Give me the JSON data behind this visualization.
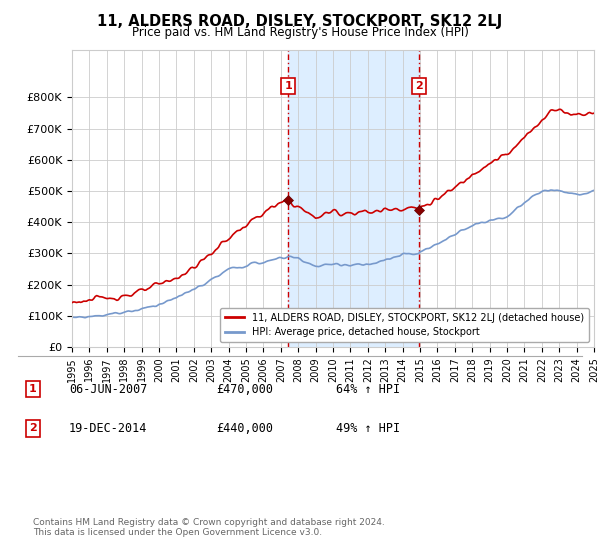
{
  "title": "11, ALDERS ROAD, DISLEY, STOCKPORT, SK12 2LJ",
  "subtitle": "Price paid vs. HM Land Registry's House Price Index (HPI)",
  "red_label": "11, ALDERS ROAD, DISLEY, STOCKPORT, SK12 2LJ (detached house)",
  "blue_label": "HPI: Average price, detached house, Stockport",
  "red_color": "#cc0000",
  "blue_color": "#7799cc",
  "shaded_color": "#ddeeff",
  "background_color": "#ffffff",
  "grid_color": "#cccccc",
  "ylim": [
    0,
    950000
  ],
  "yticks": [
    0,
    100000,
    200000,
    300000,
    400000,
    500000,
    600000,
    700000,
    800000
  ],
  "ytick_labels": [
    "£0",
    "£100K",
    "£200K",
    "£300K",
    "£400K",
    "£500K",
    "£600K",
    "£700K",
    "£800K"
  ],
  "sale1_x": 2007.43,
  "sale1_y": 470000,
  "sale1_label": "1",
  "sale1_date": "06-JUN-2007",
  "sale1_price": "£470,000",
  "sale1_hpi": "64% ↑ HPI",
  "sale2_x": 2014.96,
  "sale2_y": 440000,
  "sale2_label": "2",
  "sale2_date": "19-DEC-2014",
  "sale2_price": "£440,000",
  "sale2_hpi": "49% ↑ HPI",
  "footnote": "Contains HM Land Registry data © Crown copyright and database right 2024.\nThis data is licensed under the Open Government Licence v3.0.",
  "xmin": 1995,
  "xmax": 2025
}
